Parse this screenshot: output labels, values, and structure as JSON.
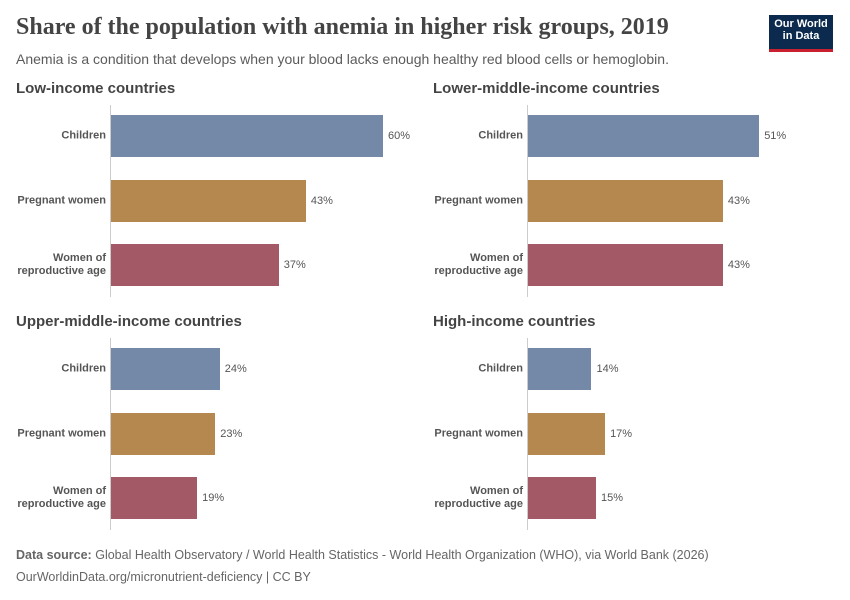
{
  "header": {
    "title": "Share of the population with anemia in higher risk groups, 2019",
    "subtitle": "Anemia is a condition that develops when your blood lacks enough healthy red blood cells or hemoglobin.",
    "logo": "Our World in Data"
  },
  "chart_data": [
    {
      "type": "hbar",
      "title": "Low-income countries",
      "categories": [
        "Children",
        "Pregnant women",
        "Women of reproductive age"
      ],
      "values": [
        60,
        43,
        37
      ],
      "value_labels": [
        "60%",
        "43%",
        "37%"
      ],
      "colors": [
        "#7489a8",
        "#b5884f",
        "#a35a66"
      ]
    },
    {
      "type": "hbar",
      "title": "Lower-middle-income countries",
      "categories": [
        "Children",
        "Pregnant women",
        "Women of reproductive age"
      ],
      "values": [
        51,
        43,
        43
      ],
      "value_labels": [
        "51%",
        "43%",
        "43%"
      ],
      "colors": [
        "#7489a8",
        "#b5884f",
        "#a35a66"
      ]
    },
    {
      "type": "hbar",
      "title": "Upper-middle-income countries",
      "categories": [
        "Children",
        "Pregnant women",
        "Women of reproductive age"
      ],
      "values": [
        24,
        23,
        19
      ],
      "value_labels": [
        "24%",
        "23%",
        "19%"
      ],
      "colors": [
        "#7489a8",
        "#b5884f",
        "#a35a66"
      ]
    },
    {
      "type": "hbar",
      "title": "High-income countries",
      "categories": [
        "Children",
        "Pregnant women",
        "Women of reproductive age"
      ],
      "values": [
        14,
        17,
        15
      ],
      "value_labels": [
        "14%",
        "17%",
        "15%"
      ],
      "colors": [
        "#7489a8",
        "#b5884f",
        "#a35a66"
      ]
    }
  ],
  "footer": {
    "source_label": "Data source:",
    "source": "Global Health Observatory / World Health Statistics - World Health Organization (WHO), via World Bank (2026)",
    "url_line": "OurWorldinData.org/micronutrient-deficiency | CC BY"
  }
}
